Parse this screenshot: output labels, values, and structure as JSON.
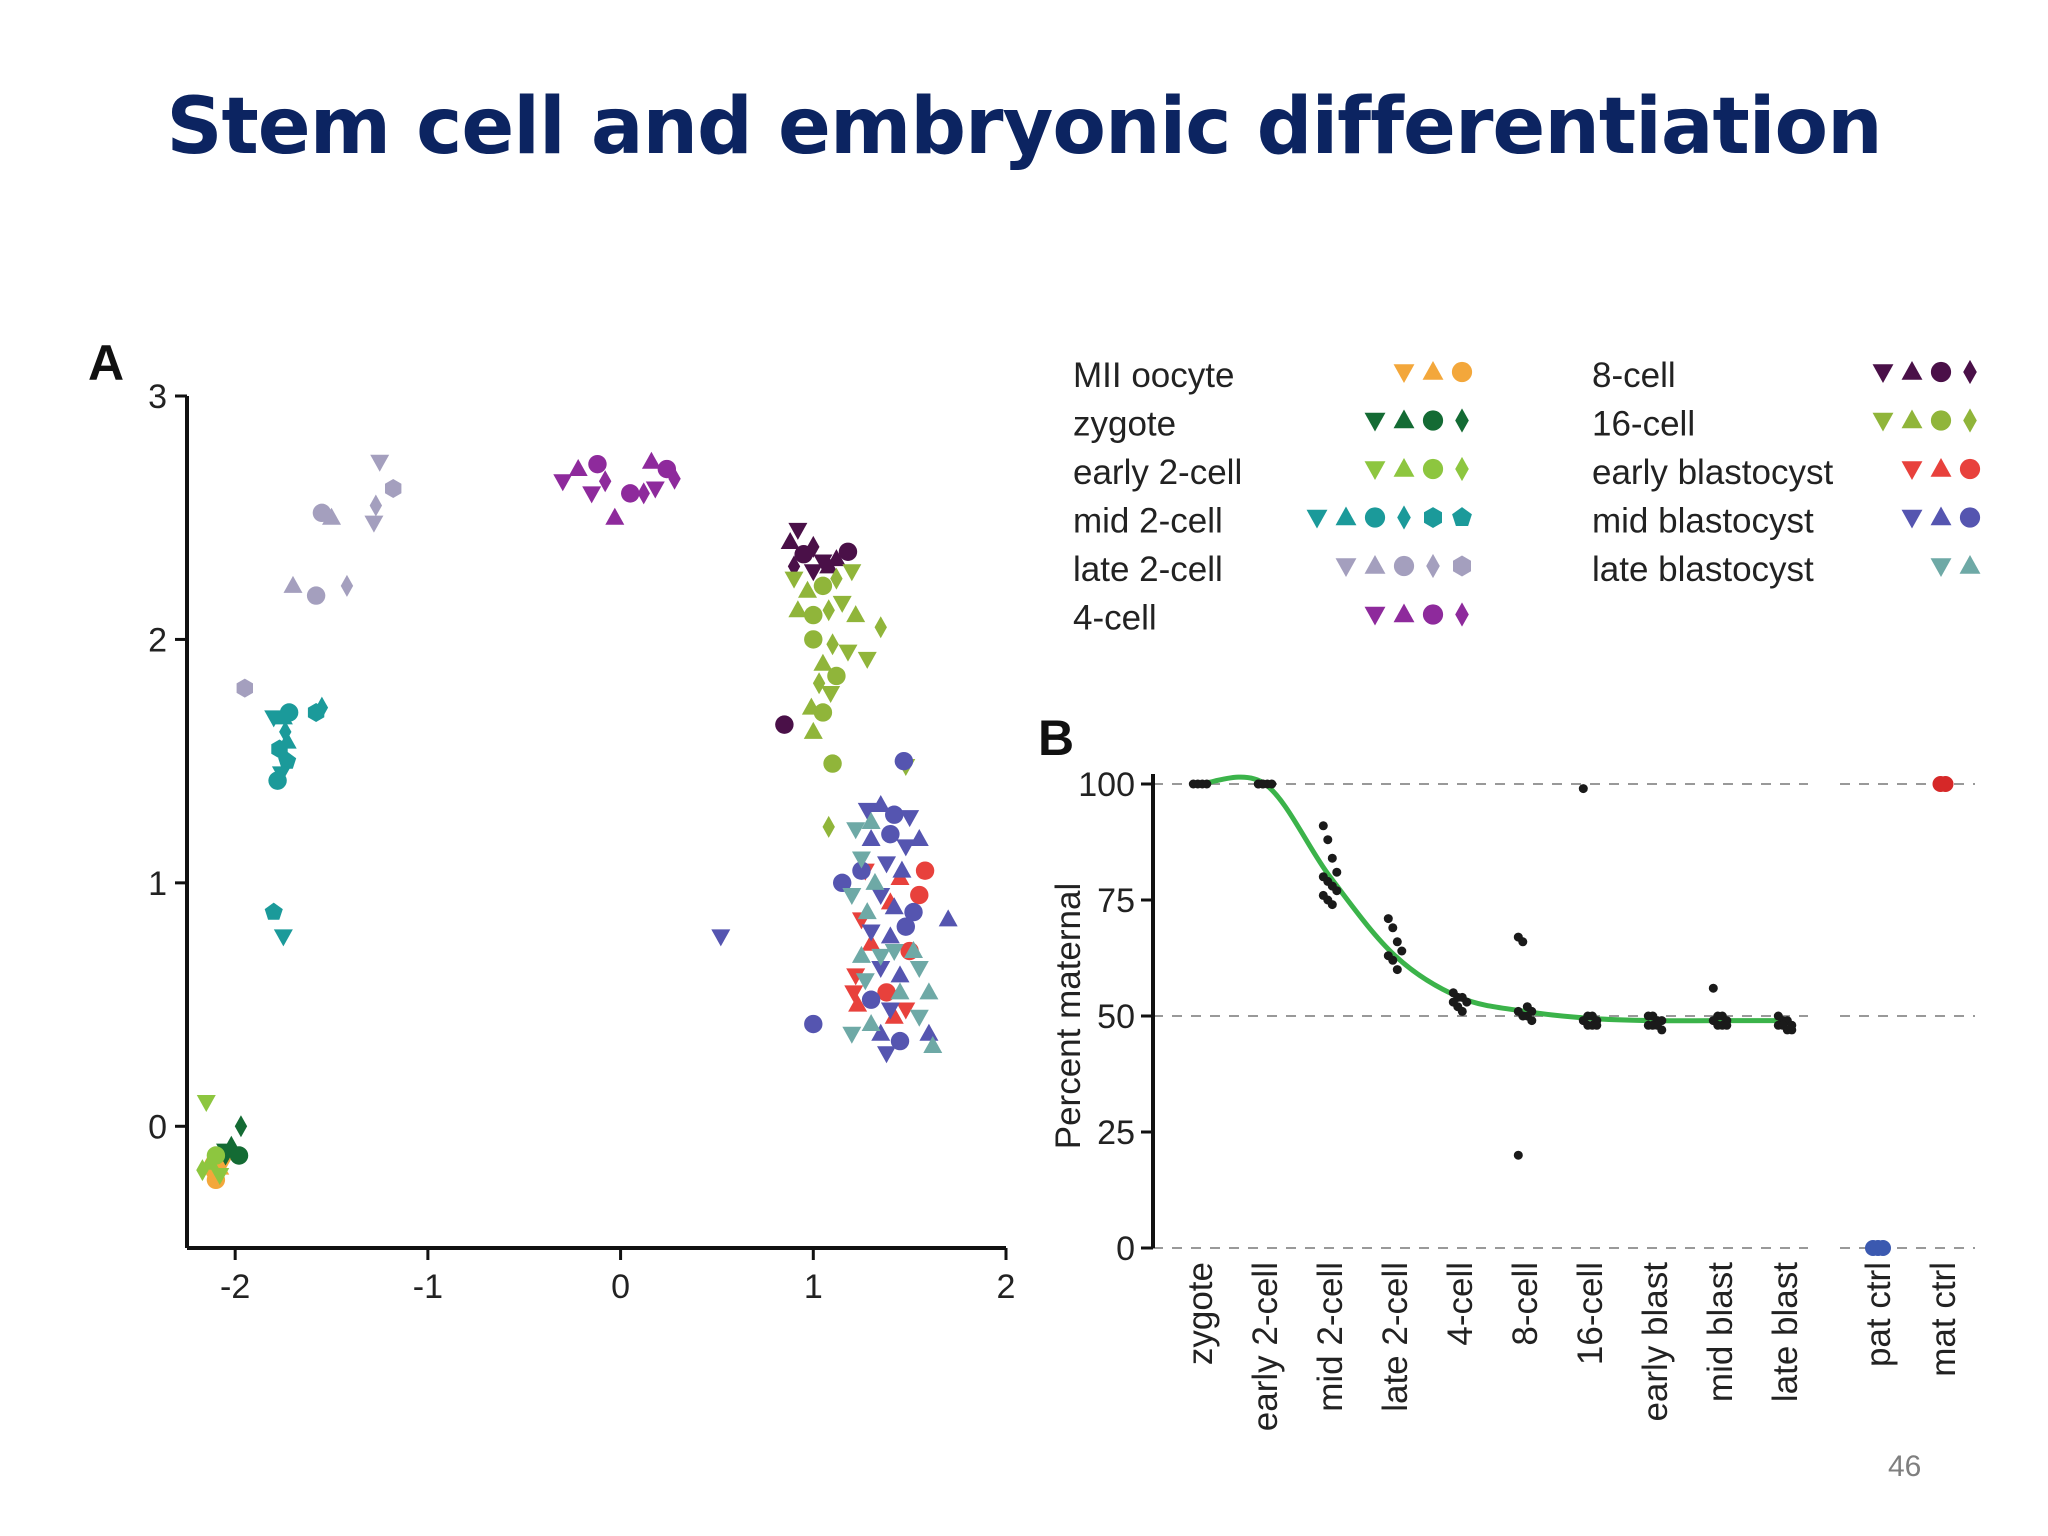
{
  "slide": {
    "title": "Stem cell and embryonic differentiation",
    "page_number": "46"
  },
  "colors": {
    "title": "#0c2461",
    "fit_line": "#3bb34a",
    "gridline": "#999999",
    "axis": "#111111"
  },
  "chart_data": [
    {
      "panel_label": "A",
      "type": "scatter",
      "title": "",
      "xlabel": "",
      "ylabel": "",
      "xlim": [
        -2.25,
        2
      ],
      "ylim": [
        -0.5,
        3
      ],
      "xticks": [
        "-2",
        "-1",
        "0",
        "1",
        "2"
      ],
      "yticks": [
        "0",
        "1",
        "2",
        "3"
      ],
      "grid": false,
      "legend_position": "top-right",
      "marker_icons": [
        "down-triangle-icon",
        "triangle-icon",
        "circle-icon",
        "diamond-icon",
        "hexagon-icon",
        "pentagon-icon"
      ],
      "series": [
        {
          "name": "MII oocyte",
          "color": "#f3a73b",
          "markers": [
            "down-triangle",
            "triangle",
            "circle"
          ],
          "points": [
            [
              -2.12,
              -0.2
            ],
            [
              -2.08,
              -0.17
            ],
            [
              -2.1,
              -0.22
            ],
            [
              -2.06,
              -0.15
            ],
            [
              -2.14,
              -0.16
            ]
          ]
        },
        {
          "name": "zygote",
          "color": "#146b34",
          "markers": [
            "down-triangle",
            "triangle",
            "circle",
            "diamond"
          ],
          "points": [
            [
              -2.05,
              -0.12
            ],
            [
              -2.02,
              -0.08
            ],
            [
              -1.98,
              -0.12
            ],
            [
              -1.97,
              0.0
            ],
            [
              -2.05,
              -0.1
            ]
          ]
        },
        {
          "name": "early 2-cell",
          "color": "#8dc63f",
          "markers": [
            "down-triangle",
            "triangle",
            "circle",
            "diamond"
          ],
          "points": [
            [
              -2.15,
              0.1
            ],
            [
              -2.13,
              -0.15
            ],
            [
              -2.1,
              -0.12
            ],
            [
              -2.17,
              -0.18
            ],
            [
              -2.08,
              -0.2
            ]
          ]
        },
        {
          "name": "mid 2-cell",
          "color": "#1b9a9a",
          "markers": [
            "down-triangle",
            "triangle",
            "circle",
            "diamond",
            "hexagon",
            "pentagon"
          ],
          "points": [
            [
              -1.8,
              1.68
            ],
            [
              -1.75,
              1.68
            ],
            [
              -1.72,
              1.7
            ],
            [
              -1.74,
              1.62
            ],
            [
              -1.77,
              1.55
            ],
            [
              -1.73,
              1.5
            ],
            [
              -1.76,
              1.45
            ],
            [
              -1.73,
              1.58
            ],
            [
              -1.78,
              1.42
            ],
            [
              -1.55,
              1.72
            ],
            [
              -1.58,
              1.7
            ],
            [
              -1.8,
              0.88
            ],
            [
              -1.75,
              0.78
            ]
          ]
        },
        {
          "name": "late 2-cell",
          "color": "#a49fbe",
          "markers": [
            "down-triangle",
            "triangle",
            "circle",
            "diamond",
            "hexagon"
          ],
          "points": [
            [
              -1.25,
              2.73
            ],
            [
              -1.5,
              2.5
            ],
            [
              -1.55,
              2.52
            ],
            [
              -1.27,
              2.55
            ],
            [
              -1.18,
              2.62
            ],
            [
              -1.28,
              2.48
            ],
            [
              -1.7,
              2.22
            ],
            [
              -1.58,
              2.18
            ],
            [
              -1.42,
              2.22
            ],
            [
              -1.95,
              1.8
            ]
          ]
        },
        {
          "name": "4-cell",
          "color": "#8e2a9c",
          "markers": [
            "down-triangle",
            "triangle",
            "circle",
            "diamond"
          ],
          "points": [
            [
              -0.3,
              2.65
            ],
            [
              -0.22,
              2.7
            ],
            [
              -0.12,
              2.72
            ],
            [
              -0.08,
              2.65
            ],
            [
              -0.15,
              2.6
            ],
            [
              -0.03,
              2.5
            ],
            [
              0.05,
              2.6
            ],
            [
              0.12,
              2.6
            ],
            [
              0.18,
              2.62
            ],
            [
              0.16,
              2.73
            ],
            [
              0.24,
              2.7
            ],
            [
              0.28,
              2.66
            ]
          ]
        },
        {
          "name": "8-cell",
          "color": "#4a1048",
          "markers": [
            "down-triangle",
            "triangle",
            "circle",
            "diamond"
          ],
          "points": [
            [
              0.92,
              2.45
            ],
            [
              0.88,
              2.4
            ],
            [
              0.95,
              2.35
            ],
            [
              1.0,
              2.38
            ],
            [
              1.05,
              2.32
            ],
            [
              1.12,
              2.33
            ],
            [
              1.18,
              2.36
            ],
            [
              0.9,
              2.3
            ],
            [
              1.0,
              2.28
            ],
            [
              1.08,
              2.3
            ],
            [
              0.85,
              1.65
            ]
          ]
        },
        {
          "name": "16-cell",
          "color": "#90b53a",
          "markers": [
            "down-triangle",
            "triangle",
            "circle",
            "diamond"
          ],
          "points": [
            [
              0.9,
              2.25
            ],
            [
              0.97,
              2.2
            ],
            [
              1.05,
              2.22
            ],
            [
              1.12,
              2.25
            ],
            [
              1.2,
              2.28
            ],
            [
              0.92,
              2.12
            ],
            [
              1.0,
              2.1
            ],
            [
              1.08,
              2.12
            ],
            [
              1.15,
              2.15
            ],
            [
              1.22,
              2.1
            ],
            [
              1.0,
              2.0
            ],
            [
              1.1,
              1.98
            ],
            [
              1.18,
              1.95
            ],
            [
              1.05,
              1.9
            ],
            [
              1.12,
              1.85
            ],
            [
              1.03,
              1.82
            ],
            [
              1.09,
              1.78
            ],
            [
              0.99,
              1.72
            ],
            [
              1.05,
              1.7
            ],
            [
              1.35,
              2.05
            ],
            [
              1.28,
              1.92
            ],
            [
              1.0,
              1.62
            ],
            [
              1.1,
              1.49
            ],
            [
              1.08,
              1.23
            ],
            [
              1.48,
              1.48
            ]
          ]
        },
        {
          "name": "early blastocyst",
          "color": "#e8413c",
          "markers": [
            "down-triangle",
            "triangle",
            "circle"
          ],
          "points": [
            [
              1.27,
              1.05
            ],
            [
              1.45,
              1.02
            ],
            [
              1.58,
              1.05
            ],
            [
              1.25,
              0.85
            ],
            [
              1.4,
              0.92
            ],
            [
              1.55,
              0.95
            ],
            [
              1.22,
              0.62
            ],
            [
              1.3,
              0.75
            ],
            [
              1.5,
              0.72
            ],
            [
              1.21,
              0.55
            ],
            [
              1.23,
              0.5
            ],
            [
              1.38,
              0.55
            ],
            [
              1.48,
              0.48
            ],
            [
              1.42,
              0.45
            ]
          ]
        },
        {
          "name": "mid blastocyst",
          "color": "#5555b0",
          "markers": [
            "down-triangle",
            "triangle",
            "circle"
          ],
          "points": [
            [
              1.28,
              1.3
            ],
            [
              1.35,
              1.32
            ],
            [
              1.42,
              1.28
            ],
            [
              1.5,
              1.27
            ],
            [
              1.3,
              1.18
            ],
            [
              1.4,
              1.2
            ],
            [
              1.48,
              1.15
            ],
            [
              1.55,
              1.18
            ],
            [
              1.25,
              1.05
            ],
            [
              1.38,
              1.08
            ],
            [
              1.46,
              1.05
            ],
            [
              1.15,
              1.0
            ],
            [
              1.35,
              0.95
            ],
            [
              1.42,
              0.9
            ],
            [
              1.52,
              0.88
            ],
            [
              1.3,
              0.8
            ],
            [
              1.4,
              0.78
            ],
            [
              1.48,
              0.82
            ],
            [
              1.35,
              0.65
            ],
            [
              1.45,
              0.62
            ],
            [
              1.3,
              0.52
            ],
            [
              1.4,
              0.48
            ],
            [
              1.35,
              0.38
            ],
            [
              1.45,
              0.35
            ],
            [
              1.38,
              0.3
            ],
            [
              1.6,
              0.38
            ],
            [
              1.0,
              0.42
            ],
            [
              0.52,
              0.78
            ],
            [
              1.7,
              0.85
            ],
            [
              1.47,
              1.5
            ]
          ]
        },
        {
          "name": "late blastocyst",
          "color": "#6ea9a6",
          "markers": [
            "down-triangle",
            "triangle"
          ],
          "points": [
            [
              1.22,
              1.22
            ],
            [
              1.3,
              1.25
            ],
            [
              1.25,
              1.1
            ],
            [
              1.32,
              1.0
            ],
            [
              1.2,
              0.95
            ],
            [
              1.28,
              0.88
            ],
            [
              1.35,
              0.7
            ],
            [
              1.25,
              0.7
            ],
            [
              1.42,
              0.72
            ],
            [
              1.52,
              0.72
            ],
            [
              1.27,
              0.6
            ],
            [
              1.45,
              0.55
            ],
            [
              1.55,
              0.65
            ],
            [
              1.6,
              0.55
            ],
            [
              1.55,
              0.45
            ],
            [
              1.3,
              0.42
            ],
            [
              1.2,
              0.38
            ],
            [
              1.62,
              0.33
            ]
          ]
        }
      ]
    },
    {
      "panel_label": "B",
      "type": "scatter",
      "title": "",
      "xlabel": "",
      "ylabel": "Percent maternal",
      "ylim": [
        0,
        100
      ],
      "yticks": [
        "0",
        "25",
        "50",
        "75",
        "100"
      ],
      "reference_lines": [
        0,
        50,
        100
      ],
      "categories": [
        "zygote",
        "early 2-cell",
        "mid 2-cell",
        "late 2-cell",
        "4-cell",
        "8-cell",
        "16-cell",
        "early blast",
        "mid blast",
        "late blast",
        "pat ctrl",
        "mat ctrl"
      ],
      "fit_curve": [
        {
          "x": "zygote",
          "y": 100
        },
        {
          "x": "early 2-cell",
          "y": 100
        },
        {
          "x": "mid 2-cell",
          "y": 80
        },
        {
          "x": "late 2-cell",
          "y": 63
        },
        {
          "x": "4-cell",
          "y": 54
        },
        {
          "x": "8-cell",
          "y": 51
        },
        {
          "x": "16-cell",
          "y": 49.5
        },
        {
          "x": "early blast",
          "y": 49
        },
        {
          "x": "mid blast",
          "y": 49
        },
        {
          "x": "late blast",
          "y": 49
        }
      ],
      "points": [
        {
          "category": "zygote",
          "values": [
            100,
            100,
            100,
            100
          ]
        },
        {
          "category": "early 2-cell",
          "values": [
            100,
            100,
            100,
            100,
            100,
            100
          ]
        },
        {
          "category": "mid 2-cell",
          "values": [
            91,
            88,
            84,
            81,
            80,
            79,
            78,
            77,
            76,
            75,
            74
          ]
        },
        {
          "category": "late 2-cell",
          "values": [
            71,
            69,
            66,
            64,
            63,
            62,
            60
          ]
        },
        {
          "category": "4-cell",
          "values": [
            55,
            54,
            54,
            53,
            53,
            52,
            51
          ]
        },
        {
          "category": "8-cell",
          "values": [
            67,
            66,
            52,
            51,
            51,
            50,
            50,
            49,
            20
          ]
        },
        {
          "category": "16-cell",
          "values": [
            99,
            50,
            50,
            49,
            49,
            48,
            48,
            48
          ]
        },
        {
          "category": "early blast",
          "values": [
            50,
            50,
            49,
            49,
            48,
            48,
            48,
            47
          ]
        },
        {
          "category": "mid blast",
          "values": [
            56,
            50,
            50,
            49,
            49,
            48,
            48,
            48
          ]
        },
        {
          "category": "late blast",
          "values": [
            50,
            49,
            49,
            48,
            48,
            48,
            47,
            47
          ]
        },
        {
          "category": "pat ctrl",
          "color": "#3b59b0",
          "values": [
            0,
            0,
            0
          ]
        },
        {
          "category": "mat ctrl",
          "color": "#d62828",
          "values": [
            100,
            100
          ]
        }
      ]
    }
  ]
}
